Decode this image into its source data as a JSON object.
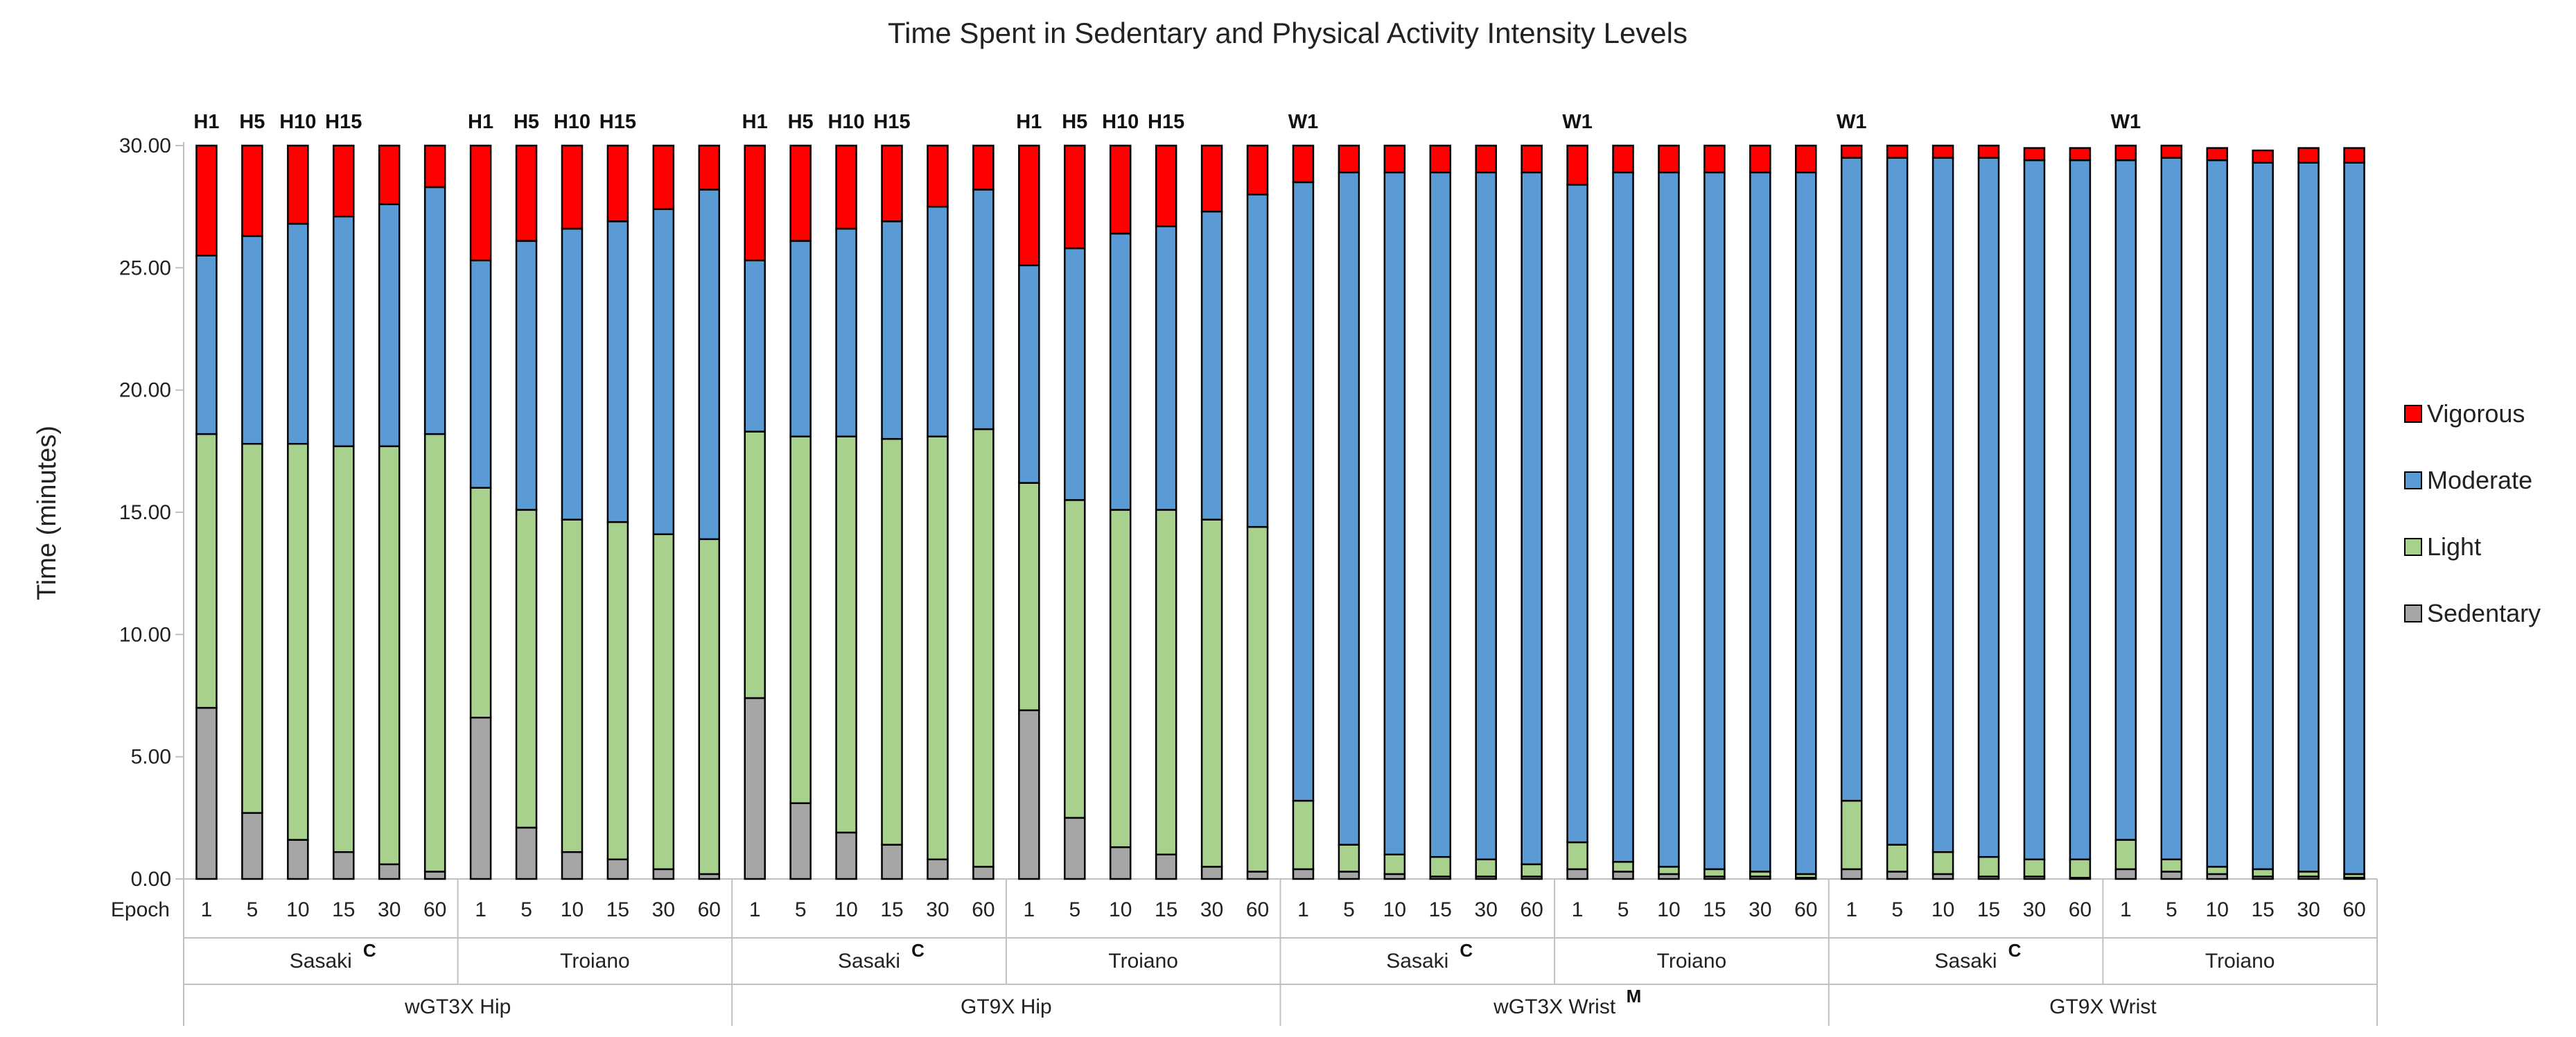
{
  "chart_data": {
    "type": "bar",
    "stacked": true,
    "title": "Time Spent in Sedentary and Physical Activity Intensity Levels",
    "ylabel": "Time (minutes)",
    "ylim": [
      0,
      30
    ],
    "yticks": [
      "0.00",
      "5.00",
      "10.00",
      "15.00",
      "20.00",
      "25.00",
      "30.00"
    ],
    "epoch_label": "Epoch",
    "legend": [
      "Vigorous",
      "Moderate",
      "Light",
      "Sedentary"
    ],
    "colors": {
      "Sedentary": "#a6a6a6",
      "Light": "#a9d18e",
      "Moderate": "#5b9bd5",
      "Vigorous": "#ff0000"
    },
    "categories": [
      "1",
      "5",
      "10",
      "15",
      "30",
      "60",
      "1",
      "5",
      "10",
      "15",
      "30",
      "60",
      "1",
      "5",
      "10",
      "15",
      "30",
      "60",
      "1",
      "5",
      "10",
      "15",
      "30",
      "60",
      "1",
      "5",
      "10",
      "15",
      "30",
      "60",
      "1",
      "5",
      "10",
      "15",
      "30",
      "60",
      "1",
      "5",
      "10",
      "15",
      "30",
      "60",
      "1",
      "5",
      "10",
      "15",
      "30",
      "60"
    ],
    "top_labels": [
      {
        "bar": 0,
        "text": "H1"
      },
      {
        "bar": 1,
        "text": "H5"
      },
      {
        "bar": 2,
        "text": "H10"
      },
      {
        "bar": 3,
        "text": "H15"
      },
      {
        "bar": 6,
        "text": "H1"
      },
      {
        "bar": 7,
        "text": "H5"
      },
      {
        "bar": 8,
        "text": "H10"
      },
      {
        "bar": 9,
        "text": "H15"
      },
      {
        "bar": 12,
        "text": "H1"
      },
      {
        "bar": 13,
        "text": "H5"
      },
      {
        "bar": 14,
        "text": "H10"
      },
      {
        "bar": 15,
        "text": "H15"
      },
      {
        "bar": 18,
        "text": "H1"
      },
      {
        "bar": 19,
        "text": "H5"
      },
      {
        "bar": 20,
        "text": "H10"
      },
      {
        "bar": 21,
        "text": "H15"
      },
      {
        "bar": 24,
        "text": "W1"
      },
      {
        "bar": 30,
        "text": "W1"
      },
      {
        "bar": 36,
        "text": "W1"
      },
      {
        "bar": 42,
        "text": "W1"
      }
    ],
    "cutpoint_groups": [
      {
        "label": "Sasaki",
        "sup": "C",
        "start": 0,
        "end": 5
      },
      {
        "label": "Troiano",
        "sup": "",
        "start": 6,
        "end": 11
      },
      {
        "label": "Sasaki",
        "sup": "C",
        "start": 12,
        "end": 17
      },
      {
        "label": "Troiano",
        "sup": "",
        "start": 18,
        "end": 23
      },
      {
        "label": "Sasaki",
        "sup": "C",
        "start": 24,
        "end": 29
      },
      {
        "label": "Troiano",
        "sup": "",
        "start": 30,
        "end": 35
      },
      {
        "label": "Sasaki",
        "sup": "C",
        "start": 36,
        "end": 41
      },
      {
        "label": "Troiano",
        "sup": "",
        "start": 42,
        "end": 47
      }
    ],
    "device_groups": [
      {
        "label": "wGT3X Hip",
        "sup": "",
        "start": 0,
        "end": 11
      },
      {
        "label": "GT9X Hip",
        "sup": "",
        "start": 12,
        "end": 23
      },
      {
        "label": "wGT3X Wrist",
        "sup": "M",
        "start": 24,
        "end": 35
      },
      {
        "label": "GT9X Wrist",
        "sup": "",
        "start": 36,
        "end": 47
      }
    ],
    "series": [
      {
        "name": "Sedentary",
        "values": [
          7.0,
          2.7,
          1.6,
          1.1,
          0.6,
          0.3,
          6.6,
          2.1,
          1.1,
          0.8,
          0.4,
          0.2,
          7.4,
          3.1,
          1.9,
          1.4,
          0.8,
          0.5,
          6.9,
          2.5,
          1.3,
          1.0,
          0.5,
          0.3,
          0.4,
          0.3,
          0.2,
          0.1,
          0.1,
          0.1,
          0.4,
          0.3,
          0.2,
          0.1,
          0.1,
          0.05,
          0.4,
          0.3,
          0.2,
          0.1,
          0.1,
          0.05,
          0.4,
          0.3,
          0.2,
          0.1,
          0.1,
          0.05
        ]
      },
      {
        "name": "Light",
        "values": [
          11.2,
          15.1,
          16.2,
          16.6,
          17.1,
          17.9,
          9.4,
          13.0,
          13.6,
          13.8,
          13.7,
          13.7,
          10.9,
          15.0,
          16.2,
          16.6,
          17.3,
          17.9,
          9.3,
          13.0,
          13.8,
          14.1,
          14.2,
          14.1,
          2.8,
          1.1,
          0.8,
          0.8,
          0.7,
          0.5,
          1.1,
          0.4,
          0.3,
          0.3,
          0.2,
          0.15,
          2.8,
          1.1,
          0.9,
          0.8,
          0.7,
          0.75,
          1.2,
          0.5,
          0.3,
          0.3,
          0.2,
          0.15
        ]
      },
      {
        "name": "Moderate",
        "values": [
          7.3,
          8.5,
          9.0,
          9.4,
          9.9,
          10.1,
          9.3,
          11.0,
          11.9,
          12.3,
          13.3,
          14.3,
          7.0,
          8.0,
          8.5,
          8.9,
          9.4,
          9.8,
          8.9,
          10.3,
          11.3,
          11.6,
          12.6,
          13.6,
          25.3,
          27.5,
          27.9,
          28.0,
          28.1,
          28.3,
          26.9,
          28.2,
          28.4,
          28.5,
          28.6,
          28.7,
          26.3,
          28.1,
          28.4,
          28.6,
          28.6,
          28.6,
          27.8,
          28.7,
          28.9,
          28.9,
          29.0,
          29.1
        ]
      },
      {
        "name": "Vigorous",
        "values": [
          4.5,
          3.7,
          3.2,
          2.9,
          2.4,
          1.7,
          4.7,
          3.9,
          3.4,
          3.1,
          2.6,
          1.8,
          4.7,
          3.9,
          3.4,
          3.1,
          2.5,
          1.8,
          4.9,
          4.2,
          3.6,
          3.3,
          2.7,
          2.0,
          1.5,
          1.1,
          1.1,
          1.1,
          1.1,
          1.1,
          1.6,
          1.1,
          1.1,
          1.1,
          1.1,
          1.1,
          0.5,
          0.5,
          0.5,
          0.5,
          0.5,
          0.5,
          0.6,
          0.5,
          0.5,
          0.5,
          0.6,
          0.6
        ]
      }
    ]
  }
}
